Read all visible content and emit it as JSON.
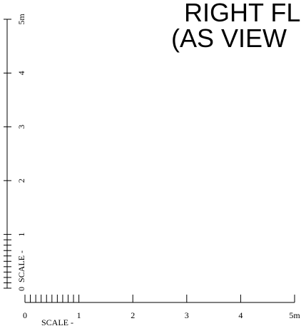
{
  "title": {
    "line1": "RIGHT FL",
    "line2": "(AS VIEW"
  },
  "vertical_scale": {
    "labels": [
      "0",
      "1",
      "2",
      "3",
      "4",
      "5m"
    ],
    "scale_text": "SCALE -"
  },
  "horizontal_scale": {
    "labels": [
      "0",
      "1",
      "2",
      "3",
      "4",
      "5m"
    ],
    "scale_text": "SCALE -"
  },
  "colors": {
    "ink": "#000000",
    "background": "#ffffff"
  }
}
